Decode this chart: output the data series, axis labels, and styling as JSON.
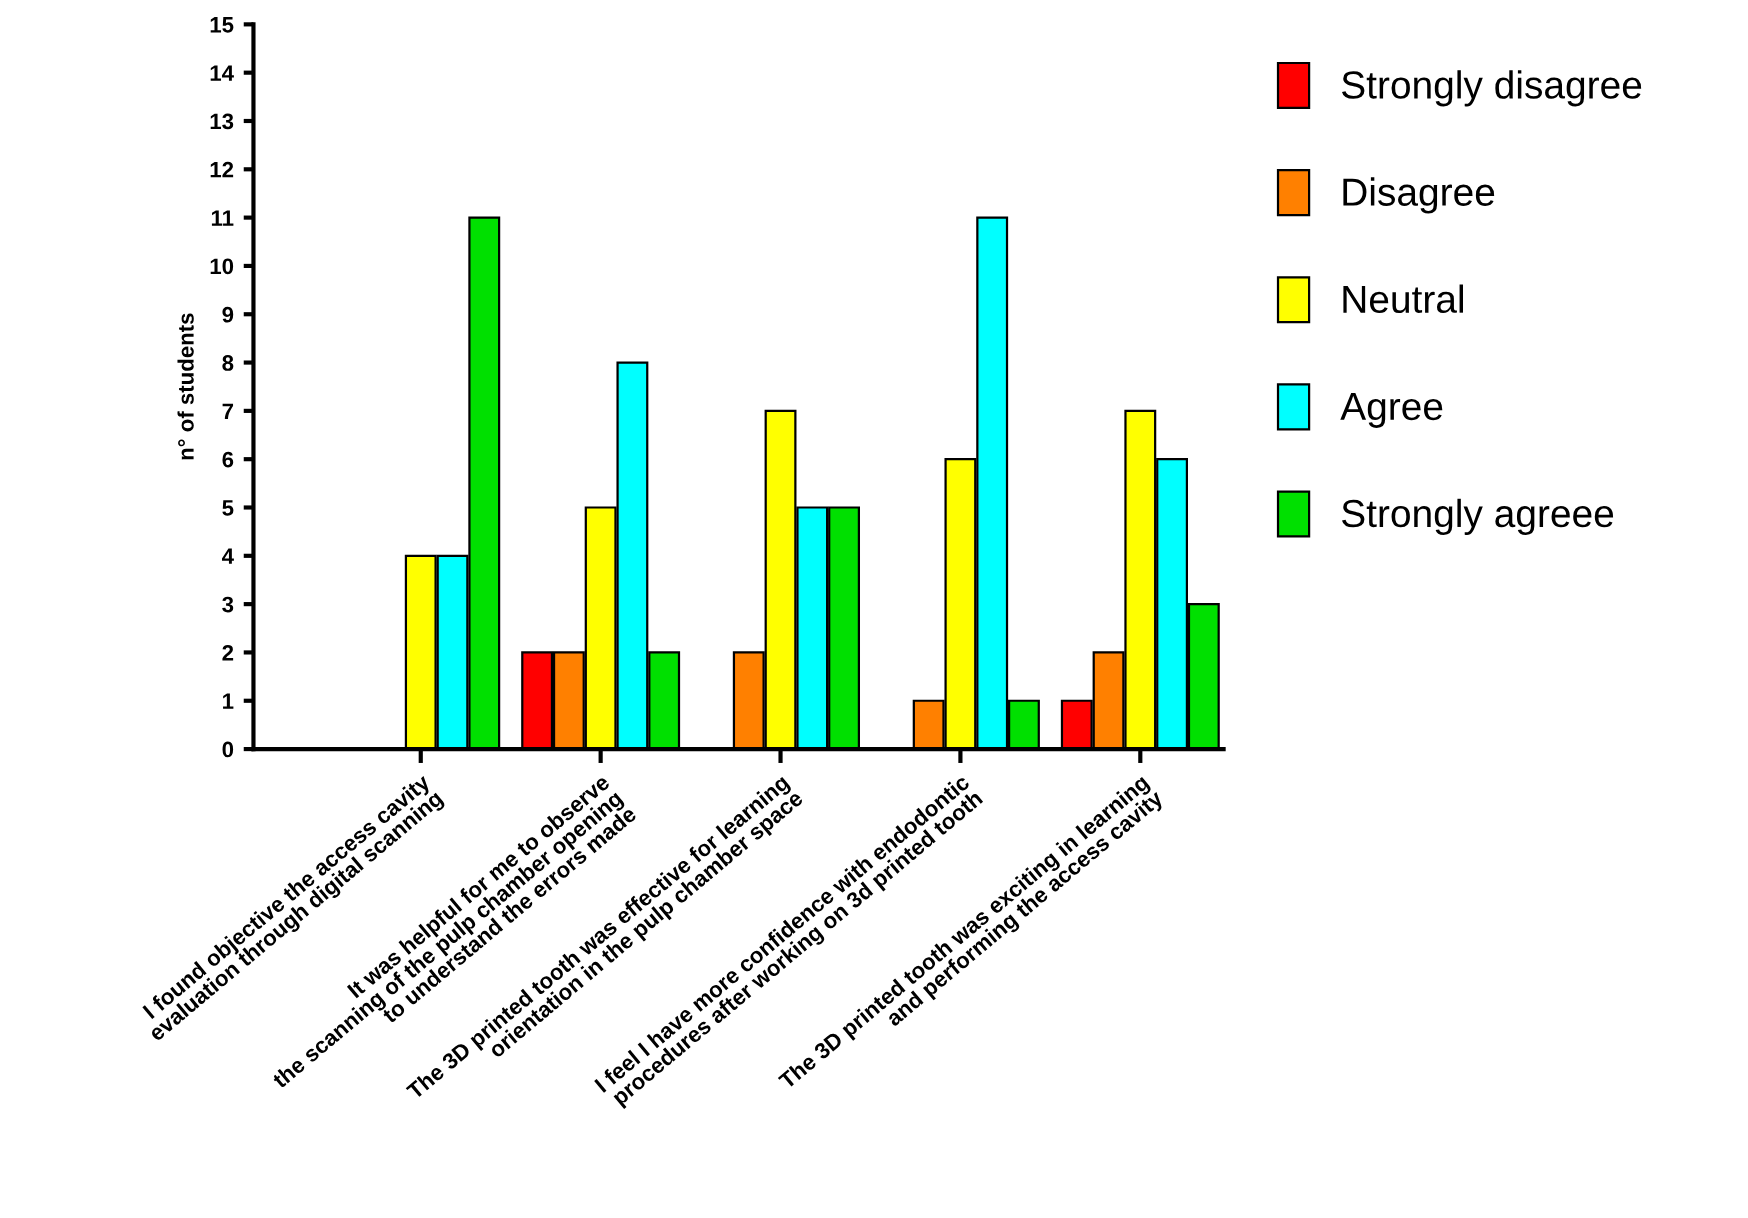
{
  "chart_data": {
    "type": "bar",
    "ylabel": "n° of students",
    "categories": [
      "I found objective the access cavity\nevaluation through digital scanning",
      "It was helpful for me to observe\nthe scanning of the pulp chamber opening\nto understand the errors made",
      "The 3D printed tooth was effective for learning\norientation in the pulp chamber space",
      "I feel I have more confidence with endodontic\nprocedures after working on 3d printed tooth",
      "The 3D printed tooth was exciting in learning\nand performing the access cavity"
    ],
    "series": [
      {
        "name": "Strongly disagree",
        "color": "#ff0000",
        "values": [
          null,
          2,
          null,
          null,
          1
        ]
      },
      {
        "name": "Disagree",
        "color": "#ff8000",
        "values": [
          null,
          2,
          2,
          1,
          2
        ]
      },
      {
        "name": "Neutral",
        "color": "#ffff00",
        "values": [
          4,
          5,
          7,
          6,
          7
        ]
      },
      {
        "name": "Agree",
        "color": "#00ffff",
        "values": [
          4,
          8,
          5,
          11,
          6
        ]
      },
      {
        "name": "Strongly agreee",
        "color": "#00e000",
        "values": [
          11,
          2,
          5,
          1,
          3
        ]
      }
    ],
    "ylim": [
      0,
      15
    ],
    "yticks": [
      0,
      1,
      2,
      3,
      4,
      5,
      6,
      7,
      8,
      9,
      10,
      11,
      12,
      13,
      14,
      15
    ],
    "grid": false,
    "legend": "right"
  }
}
